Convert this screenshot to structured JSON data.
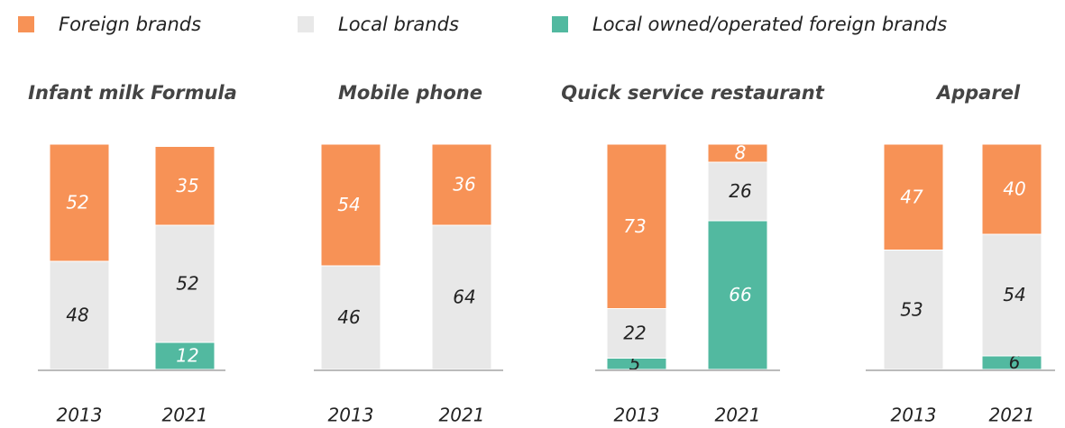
{
  "legend": [
    {
      "name": "Foreign brands",
      "color": "#f79256"
    },
    {
      "name": "Local brands",
      "color": "#e8e8e8"
    },
    {
      "name": "Local owned/operated foreign brands",
      "color": "#52b9a0"
    }
  ],
  "chart_data": [
    {
      "type": "stacked_bar",
      "title": "Infant milk Formula",
      "categories": [
        "2013",
        "2021"
      ],
      "ylim": [
        0,
        100
      ],
      "series": [
        {
          "values": [
            52,
            35
          ]
        },
        {
          "values": [
            48,
            52
          ]
        },
        {
          "values": [
            null,
            12
          ]
        }
      ]
    },
    {
      "type": "stacked_bar",
      "title": "Mobile phone",
      "categories": [
        "2013",
        "2021"
      ],
      "ylim": [
        0,
        100
      ],
      "series": [
        {
          "values": [
            54,
            36
          ]
        },
        {
          "values": [
            46,
            64
          ]
        },
        {
          "values": [
            null,
            null
          ]
        }
      ]
    },
    {
      "type": "stacked_bar",
      "title": "Quick service restaurant",
      "categories": [
        "2013",
        "2021"
      ],
      "ylim": [
        0,
        100
      ],
      "series": [
        {
          "values": [
            73,
            8
          ]
        },
        {
          "values": [
            22,
            26
          ]
        },
        {
          "values": [
            5,
            66
          ]
        }
      ]
    },
    {
      "type": "stacked_bar",
      "title": "Apparel",
      "categories": [
        "2013",
        "2021"
      ],
      "ylim": [
        0,
        100
      ],
      "series": [
        {
          "values": [
            47,
            40
          ]
        },
        {
          "values": [
            53,
            54
          ]
        },
        {
          "values": [
            null,
            6
          ]
        }
      ]
    }
  ]
}
